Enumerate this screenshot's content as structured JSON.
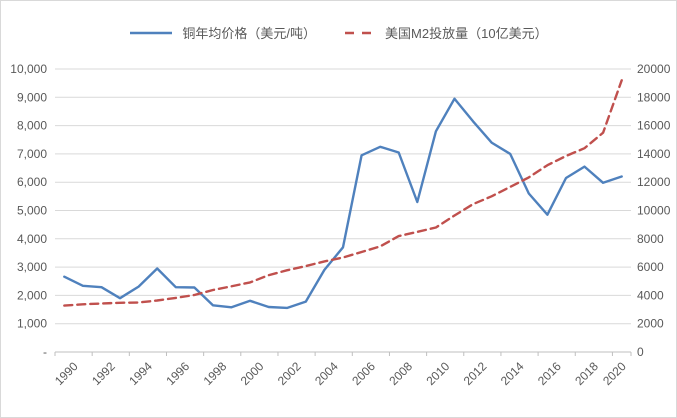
{
  "chart": {
    "background": "#ffffff",
    "border_color": "#d9d9d9"
  },
  "chart_data": {
    "type": "line",
    "title": "",
    "legend_position": "top",
    "grid": true,
    "x": [
      1990,
      1991,
      1992,
      1993,
      1994,
      1995,
      1996,
      1997,
      1998,
      1999,
      2000,
      2001,
      2002,
      2003,
      2004,
      2005,
      2006,
      2007,
      2008,
      2009,
      2010,
      2011,
      2012,
      2013,
      2014,
      2015,
      2016,
      2017,
      2018,
      2019,
      2020
    ],
    "x_tick_labels": [
      "1990",
      "1992",
      "1994",
      "1996",
      "1998",
      "2000",
      "2002",
      "2004",
      "2006",
      "2008",
      "2010",
      "2012",
      "2014",
      "2016",
      "2018",
      "2020"
    ],
    "y_axis_left": {
      "min": 0,
      "max": 10000,
      "step": 1000,
      "tick_labels": [
        "-",
        "1,000",
        "2,000",
        "3,000",
        "4,000",
        "5,000",
        "6,000",
        "7,000",
        "8,000",
        "9,000",
        "10,000"
      ]
    },
    "y_axis_right": {
      "min": 0,
      "max": 20000,
      "step": 2000,
      "tick_labels": [
        "0",
        "2000",
        "4000",
        "6000",
        "8000",
        "10000",
        "12000",
        "14000",
        "16000",
        "18000",
        "20000"
      ]
    },
    "series": [
      {
        "name": "铜年均价格（美元/吨）",
        "axis": "left",
        "color": "#4f81bd",
        "line_style": "solid",
        "values": [
          2660,
          2340,
          2290,
          1900,
          2310,
          2950,
          2290,
          2280,
          1650,
          1580,
          1810,
          1590,
          1560,
          1780,
          2900,
          3700,
          6950,
          7250,
          7050,
          5300,
          7800,
          8950,
          8150,
          7400,
          7000,
          5600,
          4850,
          6150,
          6550,
          5980,
          6200
        ]
      },
      {
        "name": "美国M2投放量（10亿美元）",
        "axis": "right",
        "color": "#c0504d",
        "line_style": "dashed",
        "values": [
          3280,
          3370,
          3430,
          3480,
          3500,
          3640,
          3820,
          4030,
          4380,
          4640,
          4920,
          5430,
          5780,
          6070,
          6400,
          6680,
          7070,
          7460,
          8190,
          8490,
          8800,
          9650,
          10450,
          11000,
          11670,
          12340,
          13200,
          13850,
          14400,
          15500,
          19200
        ]
      }
    ],
    "colors": {
      "grid": "#d9d9d9",
      "axis": "#bfbfbf",
      "text": "#595959"
    }
  }
}
